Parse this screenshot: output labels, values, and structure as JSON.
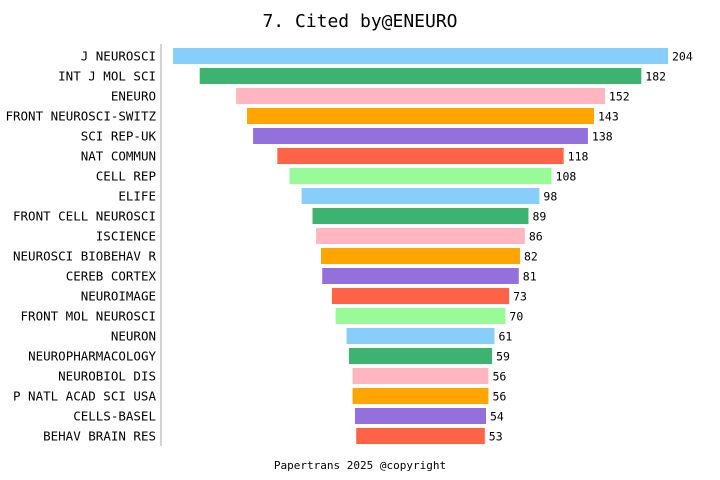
{
  "chart_data": {
    "type": "bar",
    "orientation": "horizontal",
    "align": "center",
    "title": "7. Cited by@ENEURO",
    "footer": "Papertrans 2025 @copyright",
    "categories": [
      "J NEUROSCI",
      "INT J MOL SCI",
      "ENEURO",
      "FRONT NEUROSCI-SWITZ",
      "SCI REP-UK",
      "NAT COMMUN",
      "CELL REP",
      "ELIFE",
      "FRONT CELL NEUROSCI",
      "ISCIENCE",
      "NEUROSCI BIOBEHAV R",
      "CEREB CORTEX",
      "NEUROIMAGE",
      "FRONT MOL NEUROSCI",
      "NEURON",
      "NEUROPHARMACOLOGY",
      "NEUROBIOL DIS",
      "P NATL ACAD SCI USA",
      "CELLS-BASEL",
      "BEHAV BRAIN RES"
    ],
    "values": [
      204,
      182,
      152,
      143,
      138,
      118,
      108,
      98,
      89,
      86,
      82,
      81,
      73,
      70,
      61,
      59,
      56,
      56,
      54,
      53
    ],
    "colors": [
      "#87cefa",
      "#3cb371",
      "#ffb6c1",
      "#ffa500",
      "#9370db",
      "#ff6347",
      "#98fb98"
    ]
  }
}
